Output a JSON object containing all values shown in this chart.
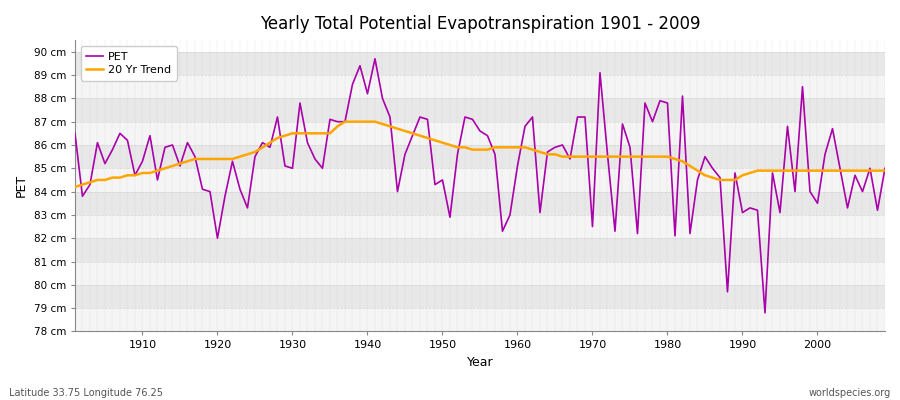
{
  "title": "Yearly Total Potential Evapotranspiration 1901 - 2009",
  "xlabel": "Year",
  "ylabel": "PET",
  "subtitle_left": "Latitude 33.75 Longitude 76.25",
  "subtitle_right": "worldspecies.org",
  "ylim": [
    78,
    90.5
  ],
  "yticks": [
    78,
    79,
    80,
    81,
    82,
    83,
    84,
    85,
    86,
    87,
    88,
    89,
    90
  ],
  "ytick_labels": [
    "78 cm",
    "79 cm",
    "80 cm",
    "81 cm",
    "82 cm",
    "83 cm",
    "84 cm",
    "85 cm",
    "86 cm",
    "87 cm",
    "88 cm",
    "89 cm",
    "90 cm"
  ],
  "pet_color": "#AA00AA",
  "trend_color": "#FFA500",
  "bg_color": "#F2F2F2",
  "band_color_light": "#F5F5F5",
  "band_color_dark": "#E8E8E8",
  "grid_color": "#CCCCCC",
  "pet_data": [
    86.5,
    83.8,
    84.3,
    86.1,
    85.2,
    85.8,
    86.5,
    86.2,
    84.7,
    85.3,
    86.4,
    84.5,
    85.9,
    86.0,
    85.1,
    86.1,
    85.5,
    84.1,
    84.0,
    82.0,
    83.8,
    85.3,
    84.1,
    83.3,
    85.5,
    86.1,
    85.9,
    87.2,
    85.1,
    85.0,
    87.8,
    86.1,
    85.4,
    85.0,
    87.1,
    87.0,
    87.0,
    88.6,
    89.4,
    88.2,
    89.7,
    88.0,
    87.2,
    84.0,
    85.6,
    86.4,
    87.2,
    87.1,
    84.3,
    84.5,
    82.9,
    85.6,
    87.2,
    87.1,
    86.6,
    86.4,
    85.6,
    82.3,
    83.0,
    85.1,
    86.8,
    87.2,
    83.1,
    85.7,
    85.9,
    86.0,
    85.4,
    87.2,
    87.2,
    82.5,
    89.1,
    85.6,
    82.3,
    86.9,
    85.9,
    82.2,
    87.8,
    87.0,
    87.9,
    87.8,
    82.1,
    88.1,
    82.2,
    84.5,
    85.5,
    85.0,
    84.6,
    79.7,
    84.8,
    83.1,
    83.3,
    83.2,
    78.8,
    84.8,
    83.1,
    86.8,
    84.0,
    88.5,
    84.0,
    83.5,
    85.6,
    86.7,
    85.0,
    83.3,
    84.7,
    84.0,
    85.0,
    83.2,
    85.0
  ],
  "trend_data": [
    84.2,
    84.3,
    84.4,
    84.5,
    84.5,
    84.6,
    84.6,
    84.7,
    84.7,
    84.8,
    84.8,
    84.9,
    85.0,
    85.1,
    85.2,
    85.3,
    85.4,
    85.4,
    85.4,
    85.4,
    85.4,
    85.4,
    85.5,
    85.6,
    85.7,
    85.9,
    86.1,
    86.3,
    86.4,
    86.5,
    86.5,
    86.5,
    86.5,
    86.5,
    86.5,
    86.8,
    87.0,
    87.0,
    87.0,
    87.0,
    87.0,
    86.9,
    86.8,
    86.7,
    86.6,
    86.5,
    86.4,
    86.3,
    86.2,
    86.1,
    86.0,
    85.9,
    85.9,
    85.8,
    85.8,
    85.8,
    85.9,
    85.9,
    85.9,
    85.9,
    85.9,
    85.8,
    85.7,
    85.6,
    85.6,
    85.5,
    85.5,
    85.5,
    85.5,
    85.5,
    85.5,
    85.5,
    85.5,
    85.5,
    85.5,
    85.5,
    85.5,
    85.5,
    85.5,
    85.5,
    85.4,
    85.3,
    85.1,
    84.9,
    84.7,
    84.6,
    84.5,
    84.5,
    84.5,
    84.7,
    84.8,
    84.9,
    84.9,
    84.9,
    84.9,
    84.9,
    84.9,
    84.9,
    84.9,
    84.9,
    84.9,
    84.9,
    84.9,
    84.9,
    84.9,
    84.9,
    84.9,
    84.9,
    84.9
  ]
}
